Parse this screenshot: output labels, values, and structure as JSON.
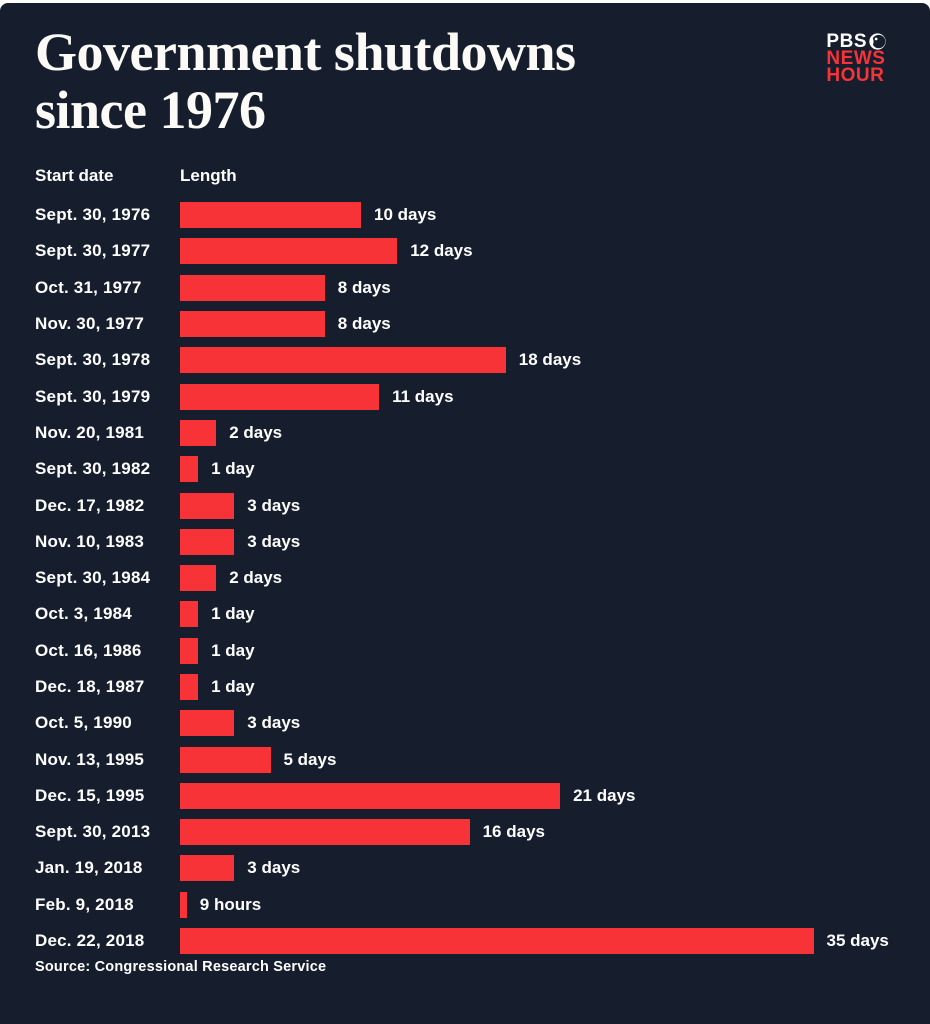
{
  "page": {
    "background_color": "#161e2d",
    "accent_red": "#f73338",
    "text_color": "#ffffff"
  },
  "header": {
    "title_line1": "Government shutdowns",
    "title_line2": "since 1976",
    "logo": {
      "pbs": "PBS",
      "news": "NEWS",
      "hour": "HOUR"
    }
  },
  "columns": {
    "start_date": "Start date",
    "length": "Length"
  },
  "chart_data": {
    "type": "bar",
    "orientation": "horizontal",
    "title": "Government shutdowns since 1976",
    "unit": "days",
    "xlim": [
      0,
      35
    ],
    "grid": false,
    "legend": "none",
    "bar_color": "#f73338",
    "pixels_per_day": 18.1,
    "categories": [
      "Sept. 30, 1976",
      "Sept. 30, 1977",
      "Oct. 31, 1977",
      "Nov. 30, 1977",
      "Sept. 30, 1978",
      "Sept. 30, 1979",
      "Nov. 20, 1981",
      "Sept. 30, 1982",
      "Dec. 17, 1982",
      "Nov. 10, 1983",
      "Sept. 30, 1984",
      "Oct. 3, 1984",
      "Oct. 16, 1986",
      "Dec. 18, 1987",
      "Oct. 5, 1990",
      "Nov. 13, 1995",
      "Dec. 15, 1995",
      "Sept. 30, 2013",
      "Jan. 19, 2018",
      "Feb. 9, 2018",
      "Dec. 22, 2018"
    ],
    "values": [
      10,
      12,
      8,
      8,
      18,
      11,
      2,
      1,
      3,
      3,
      2,
      1,
      1,
      1,
      3,
      5,
      21,
      16,
      3,
      0.375,
      35
    ],
    "labels": [
      "10 days",
      "12 days",
      "8 days",
      "8 days",
      "18 days",
      "11 days",
      "2 days",
      "1 day",
      "3 days",
      "3 days",
      "2 days",
      "1 day",
      "1 day",
      "1 day",
      "3 days",
      "5 days",
      "21 days",
      "16 days",
      "3 days",
      "9 hours",
      "35 days"
    ]
  },
  "footer": {
    "source": "Source: Congressional Research Service"
  }
}
